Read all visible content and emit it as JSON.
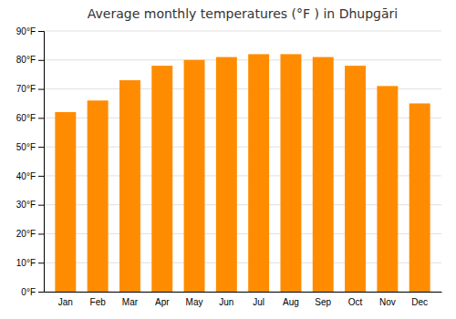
{
  "chart_data": {
    "type": "bar",
    "title": "Average monthly temperatures (°F ) in Dhupɡāri",
    "categories": [
      "Jan",
      "Feb",
      "Mar",
      "Apr",
      "May",
      "Jun",
      "Jul",
      "Aug",
      "Sep",
      "Oct",
      "Nov",
      "Dec"
    ],
    "values": [
      62,
      66,
      73,
      78,
      80,
      81,
      82,
      82,
      81,
      78,
      71,
      65
    ],
    "color": "#FF8C00",
    "ylim": [
      0,
      90
    ],
    "yticks": [
      {
        "value": 0,
        "label": "0°F"
      },
      {
        "value": 10,
        "label": "10°F"
      },
      {
        "value": 20,
        "label": "20°F"
      },
      {
        "value": 30,
        "label": "30°F"
      },
      {
        "value": 40,
        "label": "40°F"
      },
      {
        "value": 50,
        "label": "50°F"
      },
      {
        "value": 60,
        "label": "60°F"
      },
      {
        "value": 70,
        "label": "70°F"
      },
      {
        "value": 80,
        "label": "80°F"
      },
      {
        "value": 90,
        "label": "90°F"
      }
    ],
    "grid": true
  }
}
